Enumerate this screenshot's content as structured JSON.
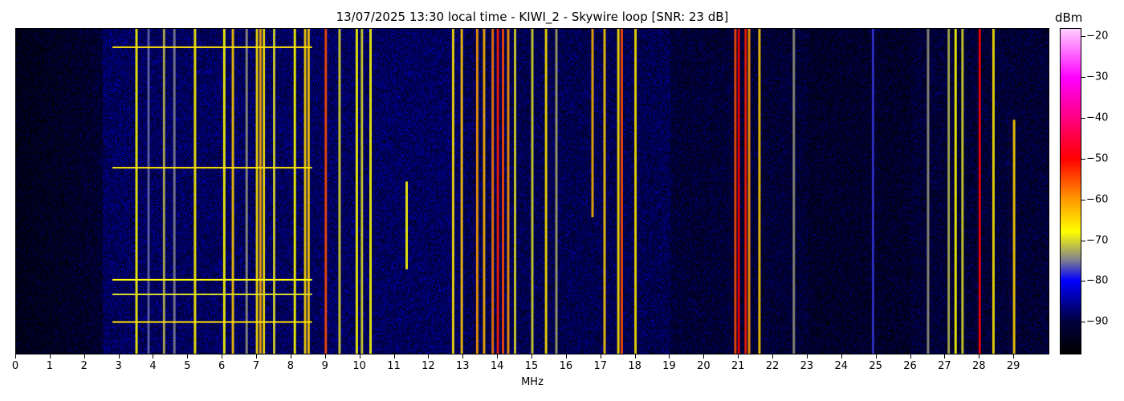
{
  "chart_data": {
    "type": "heatmap",
    "title": "13/07/2025 13:30 local time - KIWI_2 - Skywire loop [SNR: 23 dB]",
    "xlabel": "MHz",
    "xlim": [
      0,
      30
    ],
    "xticks": [
      "0",
      "1",
      "2",
      "3",
      "4",
      "5",
      "6",
      "7",
      "8",
      "9",
      "10",
      "11",
      "12",
      "13",
      "14",
      "15",
      "16",
      "17",
      "18",
      "19",
      "20",
      "21",
      "22",
      "23",
      "24",
      "25",
      "26",
      "27",
      "28",
      "29"
    ],
    "colorbar": {
      "label": "dBm",
      "range": [
        -98,
        -18
      ],
      "ticks": [
        "−20",
        "−30",
        "−40",
        "−50",
        "−60",
        "−70",
        "−80",
        "−90"
      ],
      "tick_values": [
        -20,
        -30,
        -40,
        -50,
        -60,
        -70,
        -80,
        -90
      ],
      "colormap": [
        {
          "v": -98,
          "c": "#000000"
        },
        {
          "v": -90,
          "c": "#000040"
        },
        {
          "v": -80,
          "c": "#0000ff"
        },
        {
          "v": -75,
          "c": "#7f7f8f"
        },
        {
          "v": -68,
          "c": "#ffff00"
        },
        {
          "v": -60,
          "c": "#ff9900"
        },
        {
          "v": -50,
          "c": "#ff0000"
        },
        {
          "v": -40,
          "c": "#ff0080"
        },
        {
          "v": -30,
          "c": "#ff00ff"
        },
        {
          "v": -18,
          "c": "#ffccff"
        }
      ]
    },
    "noise_floor_dbm": -88,
    "signals": [
      {
        "mhz": 3.5,
        "dbm": -68
      },
      {
        "mhz": 3.85,
        "dbm": -76
      },
      {
        "mhz": 4.3,
        "dbm": -72
      },
      {
        "mhz": 4.6,
        "dbm": -75
      },
      {
        "mhz": 5.2,
        "dbm": -67
      },
      {
        "mhz": 6.05,
        "dbm": -68
      },
      {
        "mhz": 6.3,
        "dbm": -64
      },
      {
        "mhz": 6.7,
        "dbm": -74
      },
      {
        "mhz": 7.0,
        "dbm": -66
      },
      {
        "mhz": 7.1,
        "dbm": -62
      },
      {
        "mhz": 7.2,
        "dbm": -66
      },
      {
        "mhz": 7.5,
        "dbm": -70
      },
      {
        "mhz": 8.1,
        "dbm": -68
      },
      {
        "mhz": 8.4,
        "dbm": -65
      },
      {
        "mhz": 8.5,
        "dbm": -64
      },
      {
        "mhz": 9.0,
        "dbm": -55
      },
      {
        "mhz": 9.4,
        "dbm": -70
      },
      {
        "mhz": 9.9,
        "dbm": -68
      },
      {
        "mhz": 10.05,
        "dbm": -70
      },
      {
        "mhz": 10.3,
        "dbm": -68
      },
      {
        "mhz": 11.35,
        "dbm": -68
      },
      {
        "mhz": 12.7,
        "dbm": -66
      },
      {
        "mhz": 12.95,
        "dbm": -64
      },
      {
        "mhz": 13.4,
        "dbm": -60
      },
      {
        "mhz": 13.6,
        "dbm": -62
      },
      {
        "mhz": 13.85,
        "dbm": -58
      },
      {
        "mhz": 14.0,
        "dbm": -52
      },
      {
        "mhz": 14.15,
        "dbm": -55
      },
      {
        "mhz": 14.3,
        "dbm": -60
      },
      {
        "mhz": 14.5,
        "dbm": -70
      },
      {
        "mhz": 15.0,
        "dbm": -70
      },
      {
        "mhz": 15.4,
        "dbm": -66
      },
      {
        "mhz": 15.7,
        "dbm": -73
      },
      {
        "mhz": 16.75,
        "dbm": -62
      },
      {
        "mhz": 17.1,
        "dbm": -64
      },
      {
        "mhz": 17.5,
        "dbm": -66
      },
      {
        "mhz": 17.6,
        "dbm": -55
      },
      {
        "mhz": 18.0,
        "dbm": -66
      },
      {
        "mhz": 20.9,
        "dbm": -55
      },
      {
        "mhz": 21.0,
        "dbm": -50
      },
      {
        "mhz": 21.2,
        "dbm": -52
      },
      {
        "mhz": 21.3,
        "dbm": -60
      },
      {
        "mhz": 21.6,
        "dbm": -64
      },
      {
        "mhz": 22.6,
        "dbm": -74
      },
      {
        "mhz": 24.9,
        "dbm": -78
      },
      {
        "mhz": 26.5,
        "dbm": -74
      },
      {
        "mhz": 27.1,
        "dbm": -72
      },
      {
        "mhz": 27.3,
        "dbm": -68
      },
      {
        "mhz": 27.5,
        "dbm": -70
      },
      {
        "mhz": 28.0,
        "dbm": -50
      },
      {
        "mhz": 28.4,
        "dbm": -66
      },
      {
        "mhz": 29.0,
        "dbm": -65
      }
    ]
  }
}
